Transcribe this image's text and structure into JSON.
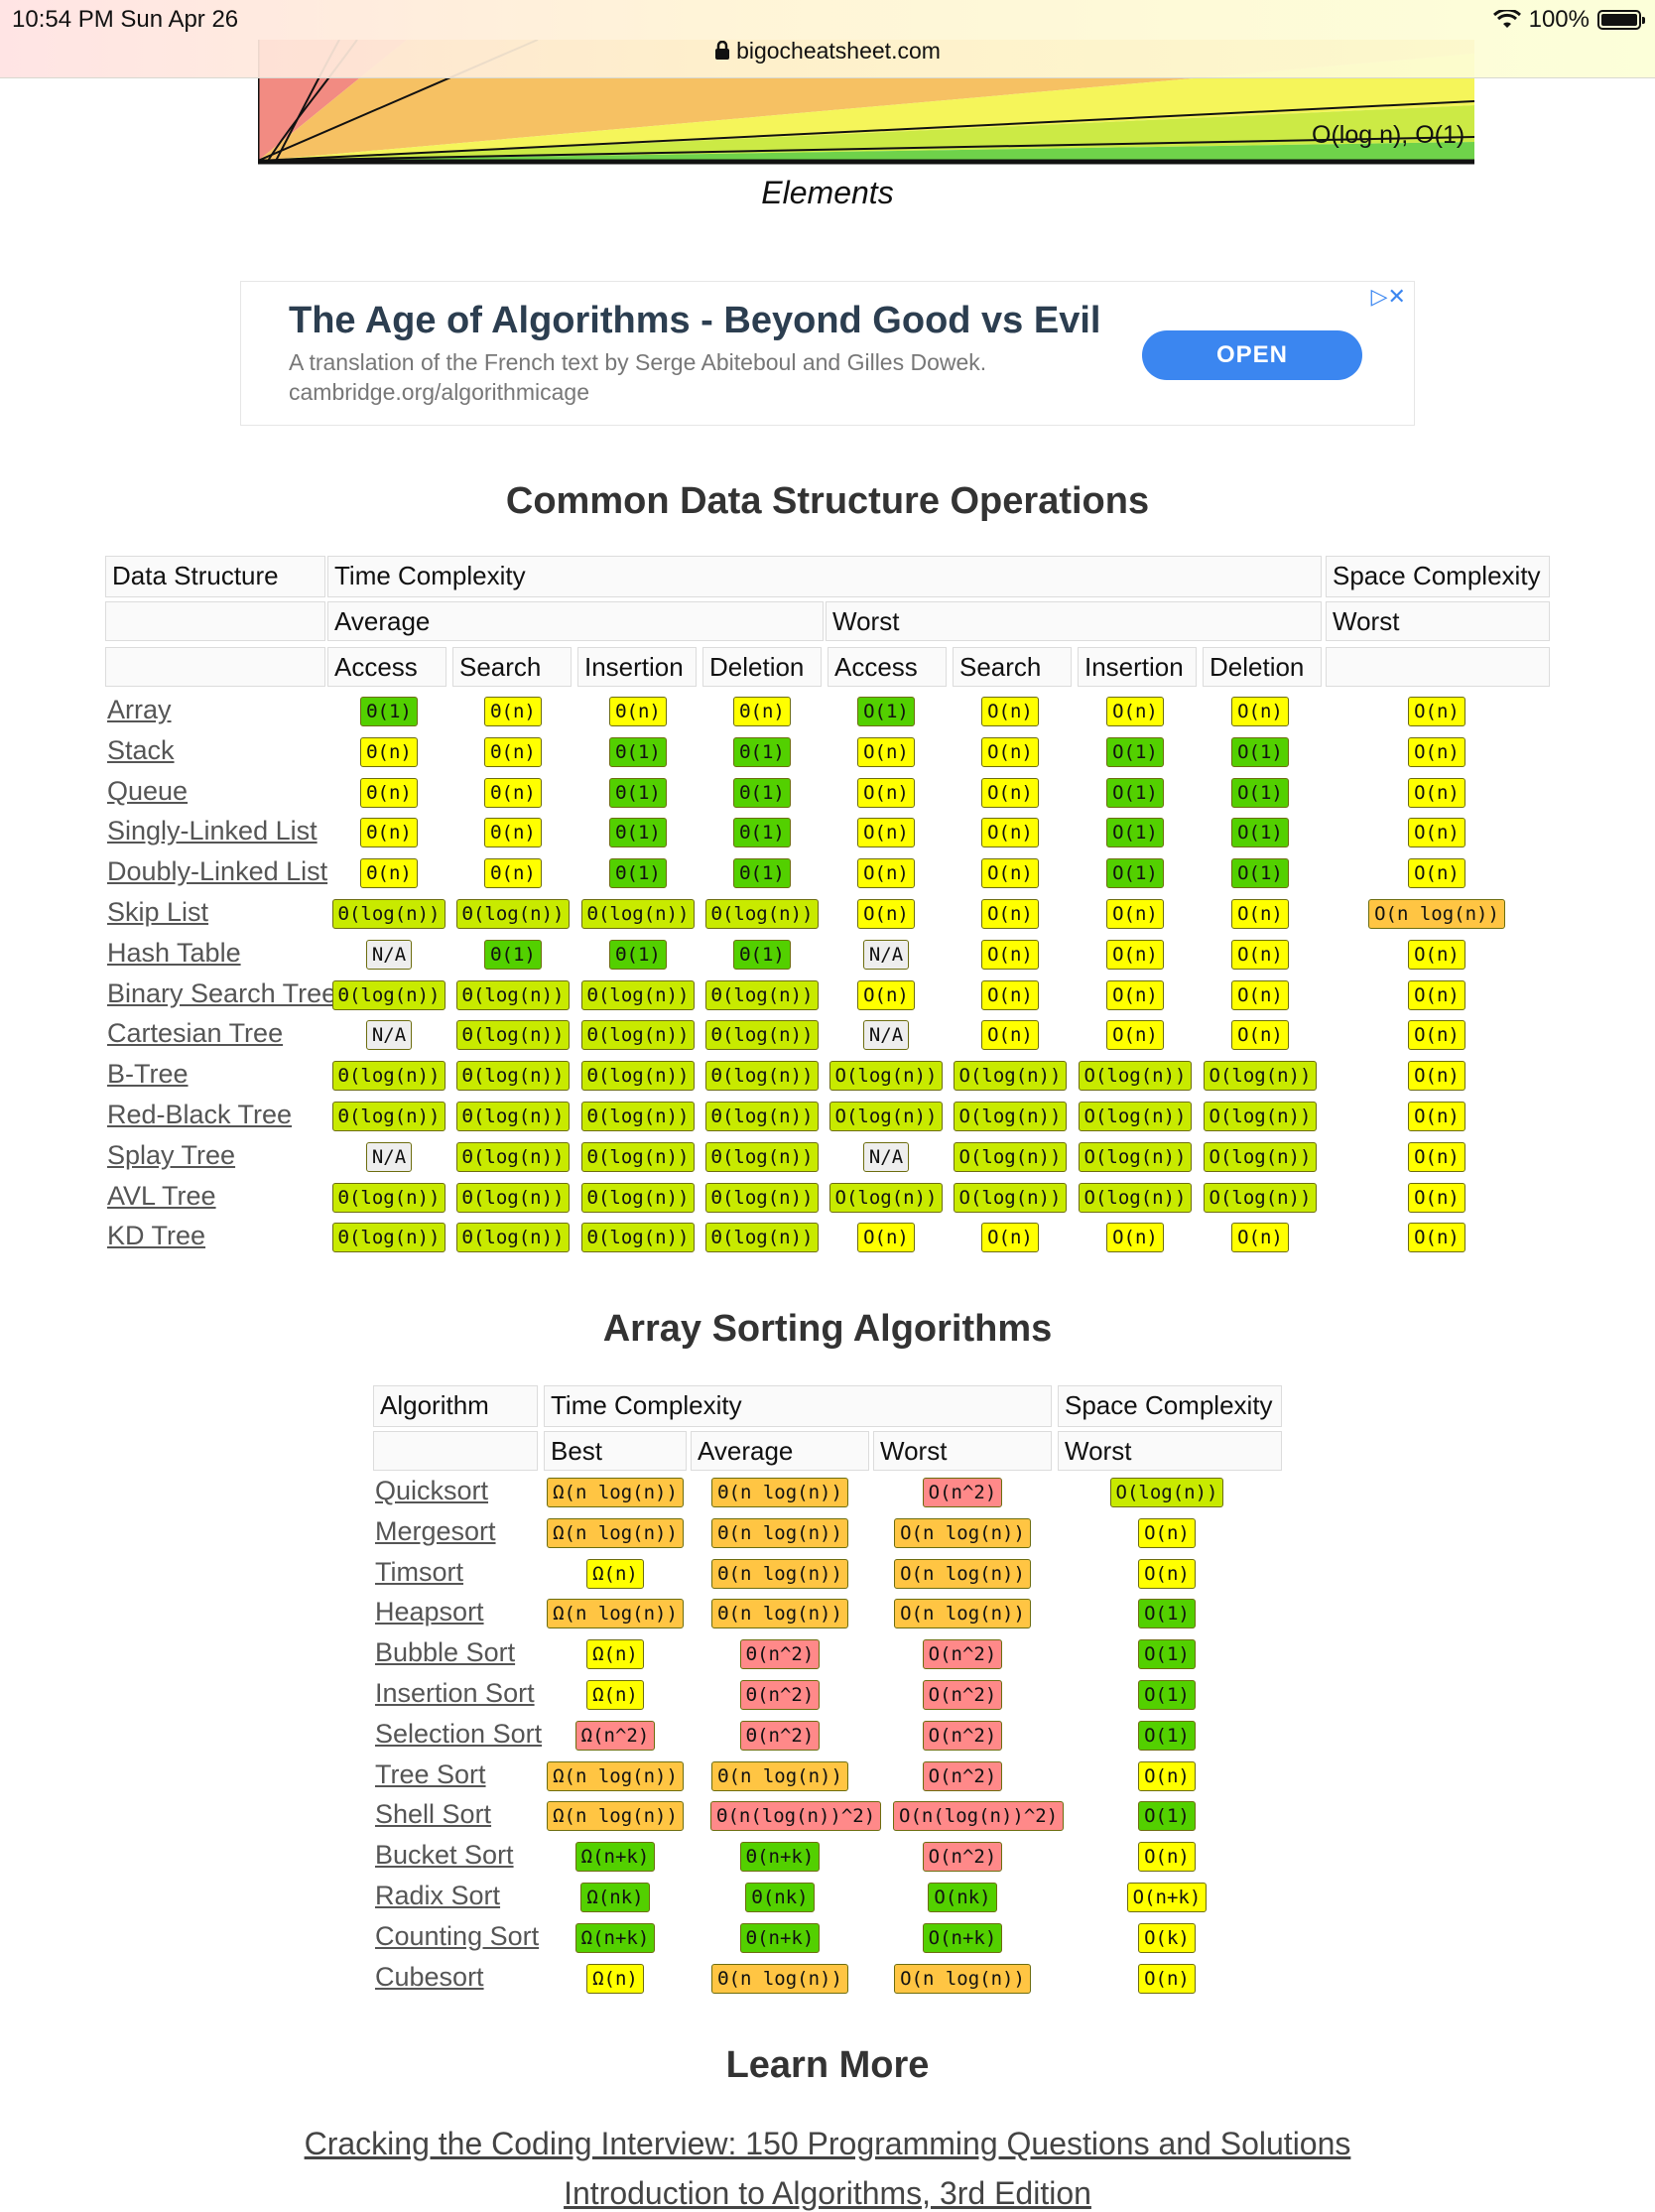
{
  "status": {
    "time_date": "10:54 PM   Sun Apr 26",
    "battery_text": "100%",
    "battery_level": 1.0
  },
  "browser": {
    "url": "bigocheatsheet.com"
  },
  "chart_fragment": {
    "label": "O(log n), O(1)",
    "xlabel": "Elements"
  },
  "ad": {
    "title": "The Age of Algorithms - Beyond Good vs Evil",
    "description": "A translation of the French text by Serge Abiteboul and Gilles Dowek.",
    "url": "cambridge.org/algorithmicage",
    "button": "OPEN",
    "icons": "▷✕"
  },
  "ds_section": {
    "title": "Common Data Structure Operations",
    "h_data_structure": "Data Structure",
    "h_time": "Time Complexity",
    "h_space": "Space Complexity",
    "h_average": "Average",
    "h_worst": "Worst",
    "h_space_worst": "Worst",
    "ops": [
      "Access",
      "Search",
      "Insertion",
      "Deletion",
      "Access",
      "Search",
      "Insertion",
      "Deletion"
    ],
    "rows": [
      {
        "name": "Array",
        "cells": [
          [
            "Θ(1)",
            "green"
          ],
          [
            "Θ(n)",
            "yellow"
          ],
          [
            "Θ(n)",
            "yellow"
          ],
          [
            "Θ(n)",
            "yellow"
          ],
          [
            "O(1)",
            "green"
          ],
          [
            "O(n)",
            "yellow"
          ],
          [
            "O(n)",
            "yellow"
          ],
          [
            "O(n)",
            "yellow"
          ],
          [
            "O(n)",
            "yellow"
          ]
        ]
      },
      {
        "name": "Stack",
        "cells": [
          [
            "Θ(n)",
            "yellow"
          ],
          [
            "Θ(n)",
            "yellow"
          ],
          [
            "Θ(1)",
            "green"
          ],
          [
            "Θ(1)",
            "green"
          ],
          [
            "O(n)",
            "yellow"
          ],
          [
            "O(n)",
            "yellow"
          ],
          [
            "O(1)",
            "green"
          ],
          [
            "O(1)",
            "green"
          ],
          [
            "O(n)",
            "yellow"
          ]
        ]
      },
      {
        "name": "Queue",
        "cells": [
          [
            "Θ(n)",
            "yellow"
          ],
          [
            "Θ(n)",
            "yellow"
          ],
          [
            "Θ(1)",
            "green"
          ],
          [
            "Θ(1)",
            "green"
          ],
          [
            "O(n)",
            "yellow"
          ],
          [
            "O(n)",
            "yellow"
          ],
          [
            "O(1)",
            "green"
          ],
          [
            "O(1)",
            "green"
          ],
          [
            "O(n)",
            "yellow"
          ]
        ]
      },
      {
        "name": "Singly-Linked List",
        "cells": [
          [
            "Θ(n)",
            "yellow"
          ],
          [
            "Θ(n)",
            "yellow"
          ],
          [
            "Θ(1)",
            "green"
          ],
          [
            "Θ(1)",
            "green"
          ],
          [
            "O(n)",
            "yellow"
          ],
          [
            "O(n)",
            "yellow"
          ],
          [
            "O(1)",
            "green"
          ],
          [
            "O(1)",
            "green"
          ],
          [
            "O(n)",
            "yellow"
          ]
        ]
      },
      {
        "name": "Doubly-Linked List",
        "cells": [
          [
            "Θ(n)",
            "yellow"
          ],
          [
            "Θ(n)",
            "yellow"
          ],
          [
            "Θ(1)",
            "green"
          ],
          [
            "Θ(1)",
            "green"
          ],
          [
            "O(n)",
            "yellow"
          ],
          [
            "O(n)",
            "yellow"
          ],
          [
            "O(1)",
            "green"
          ],
          [
            "O(1)",
            "green"
          ],
          [
            "O(n)",
            "yellow"
          ]
        ]
      },
      {
        "name": "Skip List",
        "cells": [
          [
            "Θ(log(n))",
            "lgreen"
          ],
          [
            "Θ(log(n))",
            "lgreen"
          ],
          [
            "Θ(log(n))",
            "lgreen"
          ],
          [
            "Θ(log(n))",
            "lgreen"
          ],
          [
            "O(n)",
            "yellow"
          ],
          [
            "O(n)",
            "yellow"
          ],
          [
            "O(n)",
            "yellow"
          ],
          [
            "O(n)",
            "yellow"
          ],
          [
            "O(n log(n))",
            "orange"
          ]
        ]
      },
      {
        "name": "Hash Table",
        "cells": [
          [
            "N/A",
            "gray"
          ],
          [
            "Θ(1)",
            "green"
          ],
          [
            "Θ(1)",
            "green"
          ],
          [
            "Θ(1)",
            "green"
          ],
          [
            "N/A",
            "gray"
          ],
          [
            "O(n)",
            "yellow"
          ],
          [
            "O(n)",
            "yellow"
          ],
          [
            "O(n)",
            "yellow"
          ],
          [
            "O(n)",
            "yellow"
          ]
        ]
      },
      {
        "name": "Binary Search Tree",
        "cells": [
          [
            "Θ(log(n))",
            "lgreen"
          ],
          [
            "Θ(log(n))",
            "lgreen"
          ],
          [
            "Θ(log(n))",
            "lgreen"
          ],
          [
            "Θ(log(n))",
            "lgreen"
          ],
          [
            "O(n)",
            "yellow"
          ],
          [
            "O(n)",
            "yellow"
          ],
          [
            "O(n)",
            "yellow"
          ],
          [
            "O(n)",
            "yellow"
          ],
          [
            "O(n)",
            "yellow"
          ]
        ]
      },
      {
        "name": "Cartesian Tree",
        "cells": [
          [
            "N/A",
            "gray"
          ],
          [
            "Θ(log(n))",
            "lgreen"
          ],
          [
            "Θ(log(n))",
            "lgreen"
          ],
          [
            "Θ(log(n))",
            "lgreen"
          ],
          [
            "N/A",
            "gray"
          ],
          [
            "O(n)",
            "yellow"
          ],
          [
            "O(n)",
            "yellow"
          ],
          [
            "O(n)",
            "yellow"
          ],
          [
            "O(n)",
            "yellow"
          ]
        ]
      },
      {
        "name": "B-Tree",
        "cells": [
          [
            "Θ(log(n))",
            "lgreen"
          ],
          [
            "Θ(log(n))",
            "lgreen"
          ],
          [
            "Θ(log(n))",
            "lgreen"
          ],
          [
            "Θ(log(n))",
            "lgreen"
          ],
          [
            "O(log(n))",
            "lgreen"
          ],
          [
            "O(log(n))",
            "lgreen"
          ],
          [
            "O(log(n))",
            "lgreen"
          ],
          [
            "O(log(n))",
            "lgreen"
          ],
          [
            "O(n)",
            "yellow"
          ]
        ]
      },
      {
        "name": "Red-Black Tree",
        "cells": [
          [
            "Θ(log(n))",
            "lgreen"
          ],
          [
            "Θ(log(n))",
            "lgreen"
          ],
          [
            "Θ(log(n))",
            "lgreen"
          ],
          [
            "Θ(log(n))",
            "lgreen"
          ],
          [
            "O(log(n))",
            "lgreen"
          ],
          [
            "O(log(n))",
            "lgreen"
          ],
          [
            "O(log(n))",
            "lgreen"
          ],
          [
            "O(log(n))",
            "lgreen"
          ],
          [
            "O(n)",
            "yellow"
          ]
        ]
      },
      {
        "name": "Splay Tree",
        "cells": [
          [
            "N/A",
            "gray"
          ],
          [
            "Θ(log(n))",
            "lgreen"
          ],
          [
            "Θ(log(n))",
            "lgreen"
          ],
          [
            "Θ(log(n))",
            "lgreen"
          ],
          [
            "N/A",
            "gray"
          ],
          [
            "O(log(n))",
            "lgreen"
          ],
          [
            "O(log(n))",
            "lgreen"
          ],
          [
            "O(log(n))",
            "lgreen"
          ],
          [
            "O(n)",
            "yellow"
          ]
        ]
      },
      {
        "name": "AVL Tree",
        "cells": [
          [
            "Θ(log(n))",
            "lgreen"
          ],
          [
            "Θ(log(n))",
            "lgreen"
          ],
          [
            "Θ(log(n))",
            "lgreen"
          ],
          [
            "Θ(log(n))",
            "lgreen"
          ],
          [
            "O(log(n))",
            "lgreen"
          ],
          [
            "O(log(n))",
            "lgreen"
          ],
          [
            "O(log(n))",
            "lgreen"
          ],
          [
            "O(log(n))",
            "lgreen"
          ],
          [
            "O(n)",
            "yellow"
          ]
        ]
      },
      {
        "name": "KD Tree",
        "cells": [
          [
            "Θ(log(n))",
            "lgreen"
          ],
          [
            "Θ(log(n))",
            "lgreen"
          ],
          [
            "Θ(log(n))",
            "lgreen"
          ],
          [
            "Θ(log(n))",
            "lgreen"
          ],
          [
            "O(n)",
            "yellow"
          ],
          [
            "O(n)",
            "yellow"
          ],
          [
            "O(n)",
            "yellow"
          ],
          [
            "O(n)",
            "yellow"
          ],
          [
            "O(n)",
            "yellow"
          ]
        ]
      }
    ]
  },
  "sort_section": {
    "title": "Array Sorting Algorithms",
    "h_algorithm": "Algorithm",
    "h_time": "Time Complexity",
    "h_space": "Space Complexity",
    "h_best": "Best",
    "h_average": "Average",
    "h_worst": "Worst",
    "h_space_worst": "Worst",
    "rows": [
      {
        "name": "Quicksort",
        "cells": [
          [
            "Ω(n log(n))",
            "orange"
          ],
          [
            "Θ(n log(n))",
            "orange"
          ],
          [
            "O(n^2)",
            "red"
          ],
          [
            "O(log(n))",
            "lgreen"
          ]
        ]
      },
      {
        "name": "Mergesort",
        "cells": [
          [
            "Ω(n log(n))",
            "orange"
          ],
          [
            "Θ(n log(n))",
            "orange"
          ],
          [
            "O(n log(n))",
            "orange"
          ],
          [
            "O(n)",
            "yellow"
          ]
        ]
      },
      {
        "name": "Timsort",
        "cells": [
          [
            "Ω(n)",
            "yellow"
          ],
          [
            "Θ(n log(n))",
            "orange"
          ],
          [
            "O(n log(n))",
            "orange"
          ],
          [
            "O(n)",
            "yellow"
          ]
        ]
      },
      {
        "name": "Heapsort",
        "cells": [
          [
            "Ω(n log(n))",
            "orange"
          ],
          [
            "Θ(n log(n))",
            "orange"
          ],
          [
            "O(n log(n))",
            "orange"
          ],
          [
            "O(1)",
            "green"
          ]
        ]
      },
      {
        "name": "Bubble Sort",
        "cells": [
          [
            "Ω(n)",
            "yellow"
          ],
          [
            "Θ(n^2)",
            "red"
          ],
          [
            "O(n^2)",
            "red"
          ],
          [
            "O(1)",
            "green"
          ]
        ]
      },
      {
        "name": "Insertion Sort",
        "cells": [
          [
            "Ω(n)",
            "yellow"
          ],
          [
            "Θ(n^2)",
            "red"
          ],
          [
            "O(n^2)",
            "red"
          ],
          [
            "O(1)",
            "green"
          ]
        ]
      },
      {
        "name": "Selection Sort",
        "cells": [
          [
            "Ω(n^2)",
            "red"
          ],
          [
            "Θ(n^2)",
            "red"
          ],
          [
            "O(n^2)",
            "red"
          ],
          [
            "O(1)",
            "green"
          ]
        ]
      },
      {
        "name": "Tree Sort",
        "cells": [
          [
            "Ω(n log(n))",
            "orange"
          ],
          [
            "Θ(n log(n))",
            "orange"
          ],
          [
            "O(n^2)",
            "red"
          ],
          [
            "O(n)",
            "yellow"
          ]
        ]
      },
      {
        "name": "Shell Sort",
        "cells": [
          [
            "Ω(n log(n))",
            "orange"
          ],
          [
            "Θ(n(log(n))^2)",
            "red"
          ],
          [
            "O(n(log(n))^2)",
            "red"
          ],
          [
            "O(1)",
            "green"
          ]
        ]
      },
      {
        "name": "Bucket Sort",
        "cells": [
          [
            "Ω(n+k)",
            "green"
          ],
          [
            "Θ(n+k)",
            "green"
          ],
          [
            "O(n^2)",
            "red"
          ],
          [
            "O(n)",
            "yellow"
          ]
        ]
      },
      {
        "name": "Radix Sort",
        "cells": [
          [
            "Ω(nk)",
            "green"
          ],
          [
            "Θ(nk)",
            "green"
          ],
          [
            "O(nk)",
            "green"
          ],
          [
            "O(n+k)",
            "yellow"
          ]
        ]
      },
      {
        "name": "Counting Sort",
        "cells": [
          [
            "Ω(n+k)",
            "green"
          ],
          [
            "Θ(n+k)",
            "green"
          ],
          [
            "O(n+k)",
            "green"
          ],
          [
            "O(k)",
            "yellow"
          ]
        ]
      },
      {
        "name": "Cubesort",
        "cells": [
          [
            "Ω(n)",
            "yellow"
          ],
          [
            "Θ(n log(n))",
            "orange"
          ],
          [
            "O(n log(n))",
            "orange"
          ],
          [
            "O(n)",
            "yellow"
          ]
        ]
      }
    ]
  },
  "learn_more": {
    "title": "Learn More",
    "books": [
      "Cracking the Coding Interview: 150 Programming Questions and Solutions",
      "Introduction to Algorithms, 3rd Edition"
    ]
  }
}
